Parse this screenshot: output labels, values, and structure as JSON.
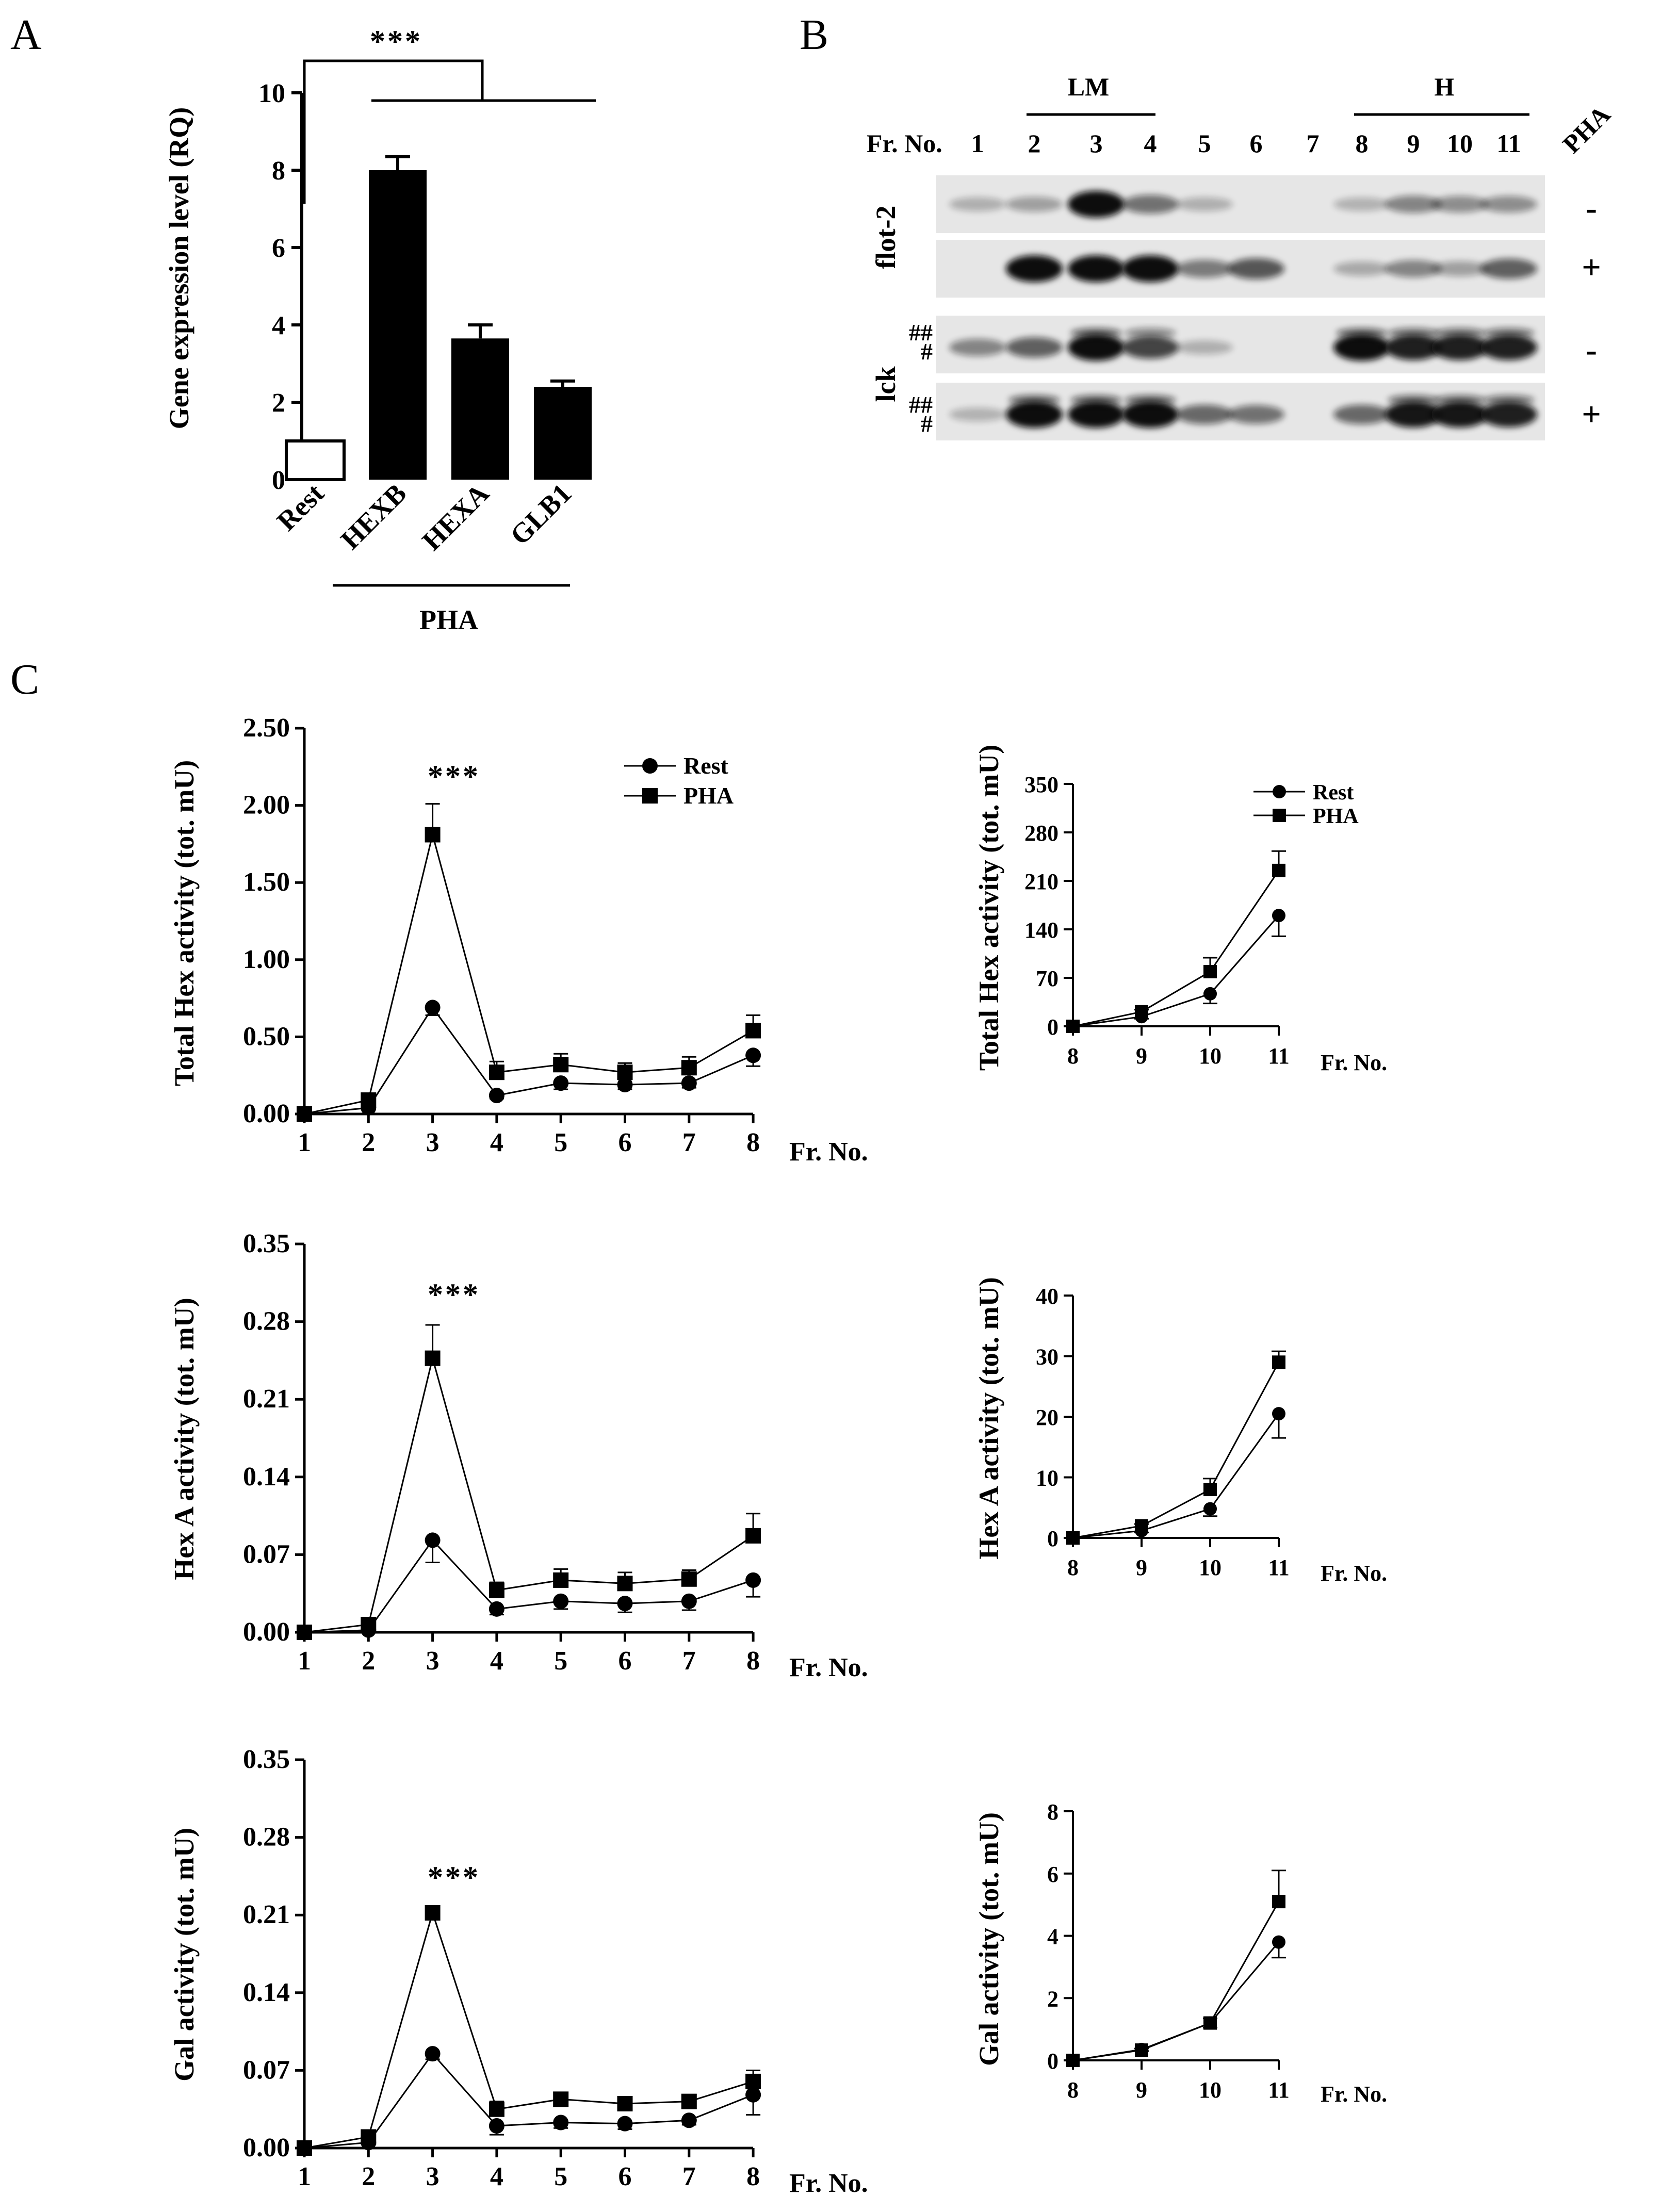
{
  "panels": {
    "A": "A",
    "B": "B",
    "C": "C"
  },
  "bar_chart": {
    "significance": "***",
    "group_label": "PHA",
    "ylabel": "Gene expression level (RQ)"
  },
  "blot": {
    "fraction_label": "Fr. No.",
    "fractions": [
      "1",
      "2",
      "3",
      "4",
      "5",
      "6",
      "7",
      "8",
      "9",
      "10",
      "11"
    ],
    "lm_label": "LM",
    "h_label": "H",
    "treatment_label": "PHA",
    "proteins": [
      "flot-2",
      "lck"
    ],
    "signs": [
      "-",
      "+",
      "-",
      "+"
    ],
    "hash_double": "##",
    "hash_single": "#"
  },
  "chart_data": [
    {
      "id": "A",
      "type": "bar",
      "categories": [
        "Rest",
        "HEXB",
        "HEXA",
        "GLB1"
      ],
      "values": [
        1.0,
        8.0,
        3.65,
        2.4
      ],
      "errors": [
        0.0,
        0.35,
        0.35,
        0.15
      ],
      "fills": [
        "#ffffff",
        "#000000",
        "#000000",
        "#000000"
      ],
      "ylabel": "Gene expression level (RQ)",
      "ylim": [
        0,
        10
      ],
      "yticks": [
        0,
        2,
        4,
        6,
        8,
        10
      ]
    },
    {
      "id": "C1",
      "type": "line",
      "x": [
        1,
        2,
        3,
        4,
        5,
        6,
        7,
        8
      ],
      "series": [
        {
          "name": "Rest",
          "values": [
            0.0,
            0.04,
            0.69,
            0.12,
            0.2,
            0.19,
            0.2,
            0.38
          ],
          "errors": [
            0.0,
            0.01,
            0.05,
            0.02,
            0.04,
            0.03,
            0.03,
            0.07
          ]
        },
        {
          "name": "PHA",
          "values": [
            0.0,
            0.09,
            1.81,
            0.27,
            0.32,
            0.27,
            0.3,
            0.54
          ],
          "errors": [
            0.0,
            0.01,
            0.2,
            0.07,
            0.07,
            0.06,
            0.07,
            0.1
          ]
        }
      ],
      "ylabel": "Total Hex activity (tot. mU)",
      "xlabel": "Fr. No.",
      "ylim": [
        0,
        2.5
      ],
      "yticks": [
        "0.00",
        "0.50",
        "1.00",
        "1.50",
        "2.00",
        "2.50"
      ],
      "legend": "top-right",
      "annotation": "***"
    },
    {
      "id": "C2",
      "type": "line",
      "x": [
        8,
        9,
        10,
        11
      ],
      "series": [
        {
          "name": "Rest",
          "values": [
            0,
            14,
            47,
            160
          ],
          "errors": [
            0,
            3,
            14,
            30
          ]
        },
        {
          "name": "PHA",
          "values": [
            0,
            21,
            79,
            225
          ],
          "errors": [
            0,
            3,
            20,
            28
          ]
        }
      ],
      "ylabel": "Total Hex activity (tot. mU)",
      "xlabel": "Fr. No.",
      "ylim": [
        0,
        350
      ],
      "yticks": [
        "0",
        "70",
        "140",
        "210",
        "280",
        "350"
      ],
      "legend": "top-right"
    },
    {
      "id": "C3",
      "type": "line",
      "x": [
        1,
        2,
        3,
        4,
        5,
        6,
        7,
        8
      ],
      "series": [
        {
          "name": "Rest",
          "values": [
            0.0,
            0.002,
            0.083,
            0.021,
            0.028,
            0.026,
            0.028,
            0.047
          ],
          "errors": [
            0.0,
            0.001,
            0.02,
            0.005,
            0.007,
            0.008,
            0.008,
            0.015
          ]
        },
        {
          "name": "PHA",
          "values": [
            0.0,
            0.007,
            0.247,
            0.038,
            0.047,
            0.044,
            0.048,
            0.087
          ],
          "errors": [
            0.0,
            0.002,
            0.03,
            0.007,
            0.01,
            0.01,
            0.008,
            0.02
          ]
        }
      ],
      "ylabel": "Hex A activity (tot. mU)",
      "xlabel": "Fr. No.",
      "ylim": [
        0,
        0.35
      ],
      "yticks": [
        "0.00",
        "0.07",
        "0.14",
        "0.21",
        "0.28",
        "0.35"
      ],
      "annotation": "***"
    },
    {
      "id": "C4",
      "type": "line",
      "x": [
        8,
        9,
        10,
        11
      ],
      "series": [
        {
          "name": "Rest",
          "values": [
            0,
            1.2,
            4.8,
            20.5
          ],
          "errors": [
            0,
            0.3,
            1.2,
            4
          ]
        },
        {
          "name": "PHA",
          "values": [
            0,
            2.0,
            8.0,
            29.0
          ],
          "errors": [
            0,
            0.3,
            1.8,
            1.8
          ]
        }
      ],
      "ylabel": "Hex A activity (tot. mU)",
      "xlabel": "Fr. No.",
      "ylim": [
        0,
        40
      ],
      "yticks": [
        "0",
        "10",
        "20",
        "30",
        "40"
      ]
    },
    {
      "id": "C5",
      "type": "line",
      "x": [
        1,
        2,
        3,
        4,
        5,
        6,
        7,
        8
      ],
      "series": [
        {
          "name": "Rest",
          "values": [
            0.0,
            0.005,
            0.085,
            0.02,
            0.023,
            0.022,
            0.025,
            0.048
          ],
          "errors": [
            0.0,
            0.002,
            0.005,
            0.008,
            0.005,
            0.005,
            0.004,
            0.018
          ]
        },
        {
          "name": "PHA",
          "values": [
            0.0,
            0.01,
            0.212,
            0.035,
            0.044,
            0.04,
            0.042,
            0.06
          ],
          "errors": [
            0.0,
            0.003,
            0.004,
            0.007,
            0.005,
            0.006,
            0.004,
            0.01
          ]
        }
      ],
      "ylabel": "Gal activity (tot. mU)",
      "xlabel": "Fr. No.",
      "ylim": [
        0,
        0.35
      ],
      "yticks": [
        "0.00",
        "0.07",
        "0.14",
        "0.21",
        "0.28",
        "0.35"
      ],
      "annotation": "***"
    },
    {
      "id": "C6",
      "type": "line",
      "x": [
        8,
        9,
        10,
        11
      ],
      "series": [
        {
          "name": "Rest",
          "values": [
            0,
            0.35,
            1.2,
            3.8
          ],
          "errors": [
            0,
            0.05,
            0.15,
            0.5
          ]
        },
        {
          "name": "PHA",
          "values": [
            0,
            0.33,
            1.2,
            5.1
          ],
          "errors": [
            0,
            0.05,
            0.15,
            1.0
          ]
        }
      ],
      "ylabel": "Gal activity (tot. mU)",
      "xlabel": "Fr. No.",
      "ylim": [
        0,
        8
      ],
      "yticks": [
        "0",
        "2",
        "4",
        "6",
        "8"
      ]
    }
  ]
}
